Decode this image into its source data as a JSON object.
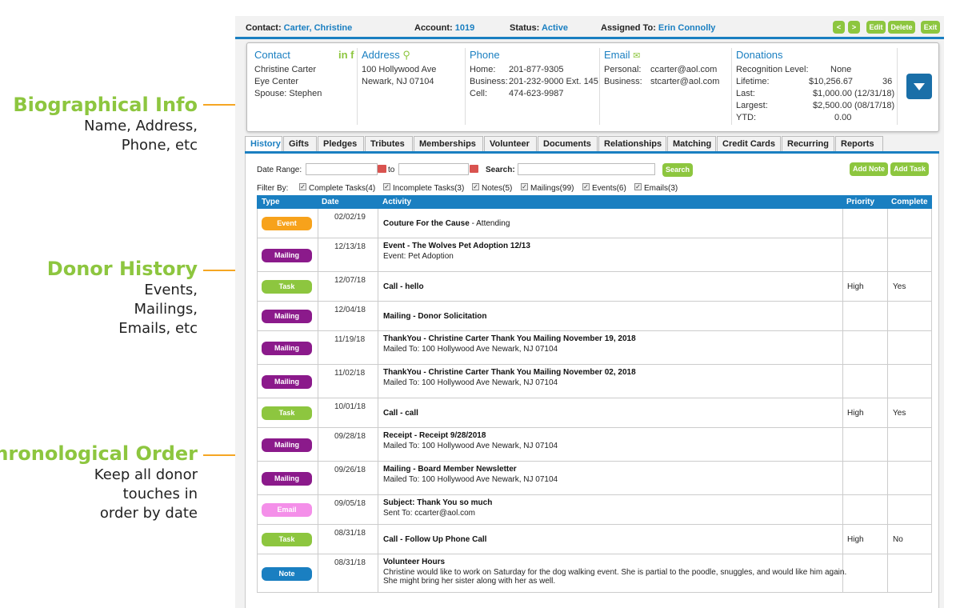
{
  "annotations": [
    {
      "heading": "Biographical Info",
      "lines": [
        "Name, Address,",
        "Phone, etc"
      ]
    },
    {
      "heading": "Donor History",
      "lines": [
        "Events,",
        "Mailings,",
        "Emails, etc"
      ]
    },
    {
      "heading": "Chronological Order",
      "lines": [
        "Keep all donor",
        "touches in",
        "order by date"
      ]
    }
  ],
  "topbar": {
    "contact_label": "Contact:",
    "contact_value": "Carter, Christine",
    "account_label": "Account:",
    "account_value": "1019",
    "status_label": "Status:",
    "status_value": "Active",
    "assigned_label": "Assigned To:",
    "assigned_value": "Erin Connolly",
    "prev": "<",
    "next": ">",
    "edit": "Edit",
    "delete": "Delete",
    "exit": "Exit"
  },
  "info": {
    "contact": {
      "title": "Contact",
      "social": "in f",
      "lines": [
        "Christine Carter",
        "Eye Center",
        "Spouse: Stephen"
      ]
    },
    "address": {
      "title": "Address",
      "lines": [
        "100 Hollywood Ave",
        "Newark, NJ 07104"
      ]
    },
    "phone": {
      "title": "Phone",
      "rows": [
        {
          "label": "Home:",
          "value": "201-877-9305"
        },
        {
          "label": "Business:",
          "value": "201-232-9000 Ext. 145"
        },
        {
          "label": "Cell:",
          "value": "474-623-9987"
        }
      ]
    },
    "email": {
      "title": "Email",
      "rows": [
        {
          "label": "Personal:",
          "value": "ccarter@aol.com"
        },
        {
          "label": "Business:",
          "value": "stcarter@aol.com"
        }
      ]
    },
    "donations": {
      "title": "Donations",
      "rows": [
        {
          "label": "Recognition Level:",
          "value": "None",
          "extra": ""
        },
        {
          "label": "Lifetime:",
          "value": "$10,256.67",
          "extra": "36"
        },
        {
          "label": "Last:",
          "value": "$1,000.00 (12/31/18)",
          "extra": ""
        },
        {
          "label": "Largest:",
          "value": "$2,500.00 (08/17/18)",
          "extra": ""
        },
        {
          "label": "YTD:",
          "value": "0.00",
          "extra": ""
        }
      ]
    }
  },
  "tabs": [
    "History",
    "Gifts",
    "Pledges",
    "Tributes",
    "Memberships",
    "Volunteer",
    "Documents",
    "Relationships",
    "Matching",
    "Credit Cards",
    "Recurring",
    "Reports"
  ],
  "filters": {
    "date_range_label": "Date Range:",
    "to_label": "to",
    "search_label": "Search:",
    "search_button": "Search",
    "add_note": "Add Note",
    "add_task": "Add Task",
    "filter_by_label": "Filter By:",
    "checks": [
      "Complete Tasks(4)",
      "Incomplete Tasks(3)",
      "Notes(5)",
      "Mailings(99)",
      "Events(6)",
      "Emails(3)"
    ]
  },
  "table": {
    "headers": [
      "Type",
      "Date",
      "Activity",
      "Priority",
      "Complete"
    ],
    "rows": [
      {
        "type": "Event",
        "color": "#f7a21b",
        "date": "02/02/19",
        "title": "Couture For the Cause",
        "rest": " - Attending",
        "sub": "",
        "priority": "",
        "complete": ""
      },
      {
        "type": "Mailing",
        "color": "#8b1a8b",
        "date": "12/13/18",
        "title": "Event - The Wolves Pet Adoption 12/13",
        "rest": "",
        "sub": "Event: Pet Adoption",
        "priority": "",
        "complete": ""
      },
      {
        "type": "Task",
        "color": "#8dc63f",
        "date": "12/07/18",
        "title": "Call - hello",
        "rest": "",
        "sub": "",
        "priority": "High",
        "complete": "Yes"
      },
      {
        "type": "Mailing",
        "color": "#8b1a8b",
        "date": "12/04/18",
        "title": "Mailing - Donor Solicitation",
        "rest": "",
        "sub": "",
        "priority": "",
        "complete": ""
      },
      {
        "type": "Mailing",
        "color": "#8b1a8b",
        "date": "11/19/18",
        "title": "ThankYou - Christine Carter Thank You Mailing November 19, 2018",
        "rest": "",
        "sub": "Mailed To: 100 Hollywood Ave Newark, NJ 07104",
        "priority": "",
        "complete": ""
      },
      {
        "type": "Mailing",
        "color": "#8b1a8b",
        "date": "11/02/18",
        "title": "ThankYou - Christine Carter Thank You Mailing November 02, 2018",
        "rest": "",
        "sub": "Mailed To: 100 Hollywood Ave Newark, NJ 07104",
        "priority": "",
        "complete": ""
      },
      {
        "type": "Task",
        "color": "#8dc63f",
        "date": "10/01/18",
        "title": "Call - call",
        "rest": "",
        "sub": "",
        "priority": "High",
        "complete": "Yes"
      },
      {
        "type": "Mailing",
        "color": "#8b1a8b",
        "date": "09/28/18",
        "title": "Receipt - Receipt 9/28/2018",
        "rest": "",
        "sub": "Mailed To: 100 Hollywood Ave Newark, NJ 07104",
        "priority": "",
        "complete": ""
      },
      {
        "type": "Mailing",
        "color": "#8b1a8b",
        "date": "09/26/18",
        "title": "Mailing - Board Member Newsletter",
        "rest": "",
        "sub": "Mailed To: 100 Hollywood Ave Newark, NJ 07104",
        "priority": "",
        "complete": ""
      },
      {
        "type": "Email",
        "color": "#f48fe9",
        "date": "09/05/18",
        "title": "Subject: Thank You so much",
        "rest": "",
        "sub": "Sent To: ccarter@aol.com",
        "priority": "",
        "complete": ""
      },
      {
        "type": "Task",
        "color": "#8dc63f",
        "date": "08/31/18",
        "title": "Call - Follow Up Phone Call",
        "rest": "",
        "sub": "",
        "priority": "High",
        "complete": "No"
      },
      {
        "type": "Note",
        "color": "#1a7fc1",
        "date": "08/31/18",
        "title": "Volunteer Hours",
        "rest": "",
        "sub": "Christine would like to work on Saturday for the dog walking event. She is partial to the poodle, snuggles, and would like him again. She might bring her sister along with her as well.",
        "priority": "",
        "complete": ""
      }
    ]
  }
}
